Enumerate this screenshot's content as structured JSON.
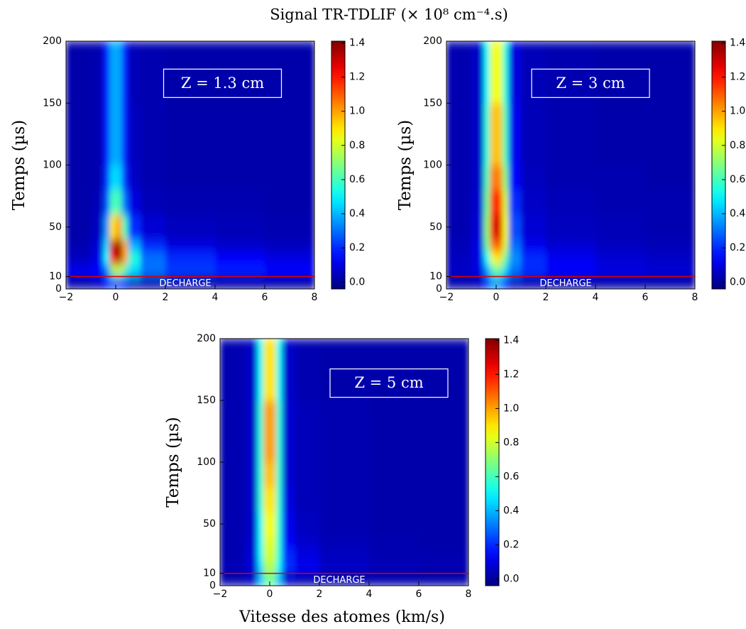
{
  "title": "Signal TR-TDLIF (× 10⁸ cm⁻⁴.s)",
  "xlabel": "Vitesse des atomes (km/s)",
  "chart_data": [
    {
      "type": "heatmap",
      "ylabel": "Temps (µs)",
      "annotation": "Z = 1.3 cm",
      "marker_label": "DECHARGE",
      "marker_y": 10,
      "marker_color": "#e00000",
      "colormap": "jet",
      "xlim": [
        -2,
        8
      ],
      "xticks": [
        {
          "value": -2,
          "label": "−2"
        },
        0,
        2,
        4,
        6,
        8
      ],
      "ylim": [
        0,
        200
      ],
      "yticks": [
        0,
        10,
        50,
        100,
        150,
        200
      ],
      "zlim": [
        -0.04,
        1.41
      ],
      "zticks": [
        {
          "value": 0,
          "label": "0.0"
        },
        0.2,
        0.4,
        0.6,
        0.8,
        {
          "value": 1,
          "label": "1.0"
        },
        1.2,
        1.4
      ],
      "x_edges": [
        -2,
        -1,
        -0.5,
        -0.25,
        0,
        0.25,
        0.5,
        1,
        2,
        4,
        6,
        8
      ],
      "y_edges": [
        0,
        10,
        20,
        30,
        40,
        60,
        80,
        100,
        150,
        200
      ],
      "z": [
        [
          0.02,
          0.05,
          0.15,
          0.25,
          0.25,
          0.15,
          0.05,
          0.03,
          0.03,
          0.02,
          0.02
        ],
        [
          0.12,
          0.15,
          0.3,
          0.7,
          0.8,
          0.6,
          0.45,
          0.3,
          0.22,
          0.18,
          0.14
        ],
        [
          0.05,
          0.1,
          0.5,
          1.2,
          1.35,
          1.0,
          0.55,
          0.3,
          0.2,
          0.15,
          0.1
        ],
        [
          0.03,
          0.08,
          0.45,
          1.3,
          1.4,
          1.0,
          0.4,
          0.2,
          0.1,
          0.07,
          0.05
        ],
        [
          0.02,
          0.05,
          0.35,
          0.9,
          1.0,
          0.6,
          0.2,
          0.08,
          0.05,
          0.04,
          0.03
        ],
        [
          0.02,
          0.04,
          0.25,
          0.6,
          0.6,
          0.3,
          0.1,
          0.04,
          0.03,
          0.03,
          0.02
        ],
        [
          0.02,
          0.03,
          0.2,
          0.45,
          0.45,
          0.2,
          0.06,
          0.03,
          0.02,
          0.02,
          0.02
        ],
        [
          0.02,
          0.03,
          0.18,
          0.38,
          0.38,
          0.18,
          0.05,
          0.03,
          0.02,
          0.02,
          0.02
        ],
        [
          0.02,
          0.03,
          0.18,
          0.38,
          0.38,
          0.18,
          0.04,
          0.03,
          0.02,
          0.02,
          0.02
        ]
      ]
    },
    {
      "type": "heatmap",
      "ylabel": "Temps (µs)",
      "annotation": "Z = 3 cm",
      "marker_label": "DECHARGE",
      "marker_y": 10,
      "marker_color": "#e00000",
      "colormap": "jet",
      "xlim": [
        -2,
        8
      ],
      "xticks": [
        {
          "value": -2,
          "label": "−2"
        },
        0,
        2,
        4,
        6,
        8
      ],
      "ylim": [
        0,
        200
      ],
      "yticks": [
        0,
        10,
        50,
        100,
        150,
        200
      ],
      "zlim": [
        -0.04,
        1.41
      ],
      "zticks": [
        {
          "value": 0,
          "label": "0.0"
        },
        0.2,
        0.4,
        0.6,
        0.8,
        {
          "value": 1,
          "label": "1.0"
        },
        1.2,
        1.4
      ],
      "x_edges": [
        -2,
        -1,
        -0.5,
        -0.25,
        0,
        0.25,
        0.5,
        1,
        2,
        4,
        6,
        8
      ],
      "y_edges": [
        0,
        10,
        20,
        30,
        40,
        60,
        80,
        100,
        150,
        200
      ],
      "z": [
        [
          0.02,
          0.04,
          0.2,
          0.35,
          0.35,
          0.2,
          0.05,
          0.03,
          0.02,
          0.02,
          0.02
        ],
        [
          0.06,
          0.1,
          0.35,
          0.6,
          0.65,
          0.45,
          0.3,
          0.2,
          0.14,
          0.1,
          0.08
        ],
        [
          0.05,
          0.1,
          0.5,
          0.85,
          0.9,
          0.65,
          0.35,
          0.2,
          0.12,
          0.08,
          0.06
        ],
        [
          0.04,
          0.1,
          0.65,
          1.05,
          1.1,
          0.8,
          0.3,
          0.12,
          0.08,
          0.05,
          0.04
        ],
        [
          0.03,
          0.08,
          0.7,
          1.25,
          1.3,
          0.85,
          0.25,
          0.08,
          0.05,
          0.04,
          0.03
        ],
        [
          0.03,
          0.07,
          0.65,
          1.15,
          1.2,
          0.8,
          0.2,
          0.06,
          0.04,
          0.03,
          0.03
        ],
        [
          0.03,
          0.06,
          0.6,
          1.05,
          1.05,
          0.7,
          0.15,
          0.05,
          0.03,
          0.03,
          0.02
        ],
        [
          0.03,
          0.06,
          0.55,
          0.95,
          0.95,
          0.6,
          0.12,
          0.04,
          0.03,
          0.02,
          0.02
        ],
        [
          0.03,
          0.06,
          0.5,
          0.85,
          0.85,
          0.55,
          0.1,
          0.04,
          0.03,
          0.02,
          0.02
        ]
      ]
    },
    {
      "type": "heatmap",
      "ylabel": "Temps (µs)",
      "annotation": "Z = 5 cm",
      "marker_label": "DECHARGE",
      "marker_y": 10,
      "marker_color": "#e00000",
      "colormap": "jet",
      "xlim": [
        -2,
        8
      ],
      "xticks": [
        {
          "value": -2,
          "label": "−2"
        },
        0,
        2,
        4,
        6,
        8
      ],
      "ylim": [
        0,
        200
      ],
      "yticks": [
        0,
        10,
        50,
        100,
        150,
        200
      ],
      "zlim": [
        -0.04,
        1.41
      ],
      "zticks": [
        {
          "value": 0,
          "label": "0.0"
        },
        0.2,
        0.4,
        0.6,
        0.8,
        {
          "value": 1,
          "label": "1.0"
        },
        1.2,
        1.4
      ],
      "x_edges": [
        -2,
        -1,
        -0.5,
        -0.25,
        0,
        0.25,
        0.5,
        1,
        2,
        4,
        6,
        8
      ],
      "y_edges": [
        0,
        10,
        20,
        30,
        40,
        60,
        80,
        100,
        150,
        200
      ],
      "z": [
        [
          0.02,
          0.05,
          0.4,
          0.65,
          0.65,
          0.4,
          0.06,
          0.03,
          0.02,
          0.02,
          0.02
        ],
        [
          0.04,
          0.08,
          0.45,
          0.75,
          0.75,
          0.5,
          0.2,
          0.12,
          0.06,
          0.04,
          0.03
        ],
        [
          0.03,
          0.08,
          0.5,
          0.8,
          0.8,
          0.55,
          0.2,
          0.1,
          0.05,
          0.03,
          0.03
        ],
        [
          0.03,
          0.07,
          0.5,
          0.82,
          0.82,
          0.55,
          0.15,
          0.07,
          0.04,
          0.03,
          0.02
        ],
        [
          0.03,
          0.06,
          0.5,
          0.85,
          0.85,
          0.55,
          0.12,
          0.05,
          0.03,
          0.02,
          0.02
        ],
        [
          0.03,
          0.06,
          0.55,
          0.9,
          0.9,
          0.55,
          0.1,
          0.04,
          0.03,
          0.02,
          0.02
        ],
        [
          0.03,
          0.06,
          0.55,
          0.95,
          0.95,
          0.55,
          0.08,
          0.04,
          0.03,
          0.02,
          0.02
        ],
        [
          0.03,
          0.06,
          0.55,
          1.0,
          1.0,
          0.55,
          0.08,
          0.04,
          0.03,
          0.02,
          0.02
        ],
        [
          0.03,
          0.06,
          0.5,
          0.9,
          0.9,
          0.5,
          0.07,
          0.03,
          0.02,
          0.02,
          0.02
        ]
      ]
    }
  ]
}
